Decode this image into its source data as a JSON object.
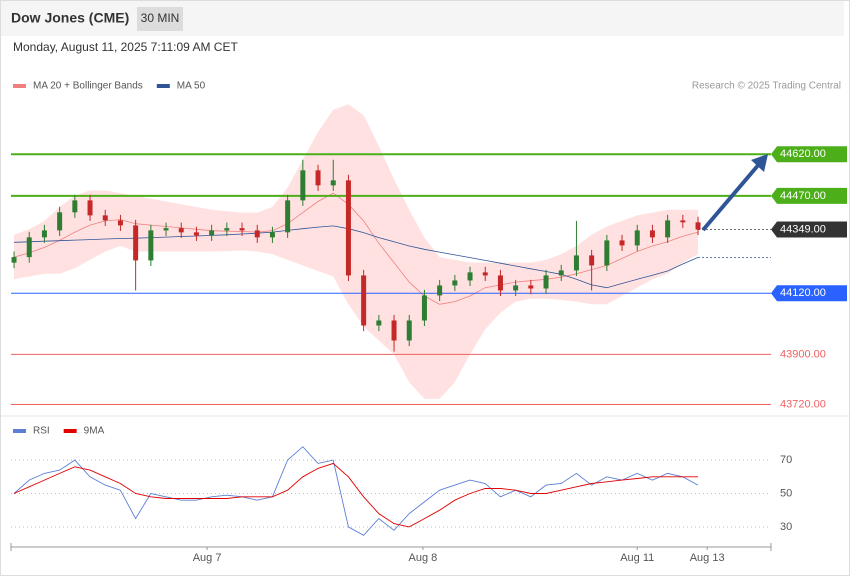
{
  "chart_data": {
    "type": "candlestick",
    "title": "Dow Jones (CME)",
    "interval": "30 MIN",
    "subtitle": "Monday, August 11, 2025 7:11:09 AM CET",
    "source": "Research © 2025 Trading Central",
    "legend": [
      {
        "name": "MA 20 + Bollinger Bands",
        "color": "#f08080"
      },
      {
        "name": "MA 50",
        "color": "#2f5597"
      }
    ],
    "xlim": [
      -0.2,
      49.8
    ],
    "xticks": [
      {
        "value": 12.7,
        "label": "Aug 7"
      },
      {
        "value": 26.9,
        "label": "Aug 8"
      },
      {
        "value": 41,
        "label": "Aug 11"
      },
      {
        "value": 45.6,
        "label": "Aug 13"
      }
    ],
    "ylim": [
      43700,
      44815
    ],
    "up_color": "#2e7d32",
    "down_color": "#c62828",
    "open": [
      44230,
      44250,
      44321,
      44346,
      44411,
      44454,
      44400,
      44382,
      44364,
      44238,
      44346,
      44354,
      44339,
      44328,
      44346,
      44354,
      44346,
      44321,
      44339,
      44454,
      44562,
      44508,
      44526,
      44184,
      44004,
      44022,
      43950,
      44022,
      44112,
      44148,
      44166,
      44195,
      44184,
      44130,
      44148,
      44137,
      44184,
      44202,
      44256,
      44220,
      44310,
      44292,
      44346,
      44321,
      44382,
      44375
    ],
    "high": [
      44270,
      44341,
      44366,
      44431,
      44474,
      44474,
      44420,
      44402,
      44384,
      44366,
      44374,
      44374,
      44359,
      44366,
      44374,
      44374,
      44366,
      44359,
      44474,
      44600,
      44582,
      44600,
      44546,
      44204,
      44042,
      44042,
      44042,
      44132,
      44168,
      44186,
      44215,
      44215,
      44204,
      44168,
      44168,
      44204,
      44222,
      44380,
      44276,
      44330,
      44330,
      44366,
      44366,
      44402,
      44402,
      44395
    ],
    "low": [
      44210,
      44230,
      44301,
      44326,
      44391,
      44380,
      44362,
      44344,
      44130,
      44218,
      44326,
      44319,
      44308,
      44308,
      44326,
      44326,
      44301,
      44301,
      44319,
      44434,
      44488,
      44488,
      44164,
      43984,
      43984,
      43910,
      43930,
      44002,
      44092,
      44128,
      44146,
      44164,
      44110,
      44110,
      44117,
      44117,
      44164,
      44182,
      44130,
      44200,
      44272,
      44272,
      44301,
      44301,
      44355,
      44329
    ],
    "close": [
      44250,
      44321,
      44346,
      44411,
      44454,
      44400,
      44382,
      44364,
      44238,
      44346,
      44354,
      44339,
      44328,
      44346,
      44354,
      44346,
      44321,
      44339,
      44454,
      44562,
      44508,
      44526,
      44184,
      44004,
      44022,
      43950,
      44022,
      44112,
      44148,
      44166,
      44195,
      44184,
      44130,
      44148,
      44137,
      44184,
      44202,
      44256,
      44220,
      44310,
      44292,
      44346,
      44321,
      44382,
      44375,
      44349
    ],
    "ma20": [
      44250,
      44265,
      44285,
      44310,
      44340,
      44365,
      44380,
      44385,
      44370,
      44365,
      44360,
      44355,
      44350,
      44345,
      44343,
      44342,
      44340,
      44345,
      44370,
      44410,
      44450,
      44480,
      44440,
      44380,
      44300,
      44230,
      44160,
      44110,
      44080,
      44090,
      44110,
      44140,
      44150,
      44160,
      44165,
      44170,
      44178,
      44190,
      44205,
      44220,
      44245,
      44270,
      44290,
      44305,
      44325,
      44340
    ],
    "ma50": [
      44303,
      44305,
      44307,
      44309,
      44311,
      44313,
      44315,
      44317,
      44318,
      44320,
      44322,
      44324,
      44326,
      44328,
      44330,
      44333,
      44336,
      44340,
      44346,
      44352,
      44358,
      44362,
      44352,
      44338,
      44320,
      44305,
      44290,
      44278,
      44268,
      44258,
      44248,
      44238,
      44228,
      44218,
      44208,
      44198,
      44188,
      44170,
      44150,
      44140,
      44155,
      44170,
      44185,
      44200,
      44225,
      44249
    ],
    "bb_upper": [
      44330,
      44350,
      44380,
      44430,
      44470,
      44490,
      44490,
      44480,
      44470,
      44460,
      44450,
      44440,
      44430,
      44420,
      44415,
      44410,
      44410,
      44430,
      44500,
      44600,
      44700,
      44780,
      44800,
      44760,
      44650,
      44530,
      44420,
      44320,
      44250,
      44240,
      44230,
      44230,
      44230,
      44230,
      44230,
      44240,
      44260,
      44290,
      44330,
      44360,
      44380,
      44400,
      44410,
      44420,
      44420,
      44420
    ],
    "bb_lower": [
      44170,
      44180,
      44190,
      44190,
      44210,
      44240,
      44270,
      44290,
      44270,
      44270,
      44270,
      44270,
      44270,
      44270,
      44271,
      44274,
      44270,
      44260,
      44240,
      44220,
      44200,
      44180,
      44080,
      44000,
      43950,
      43900,
      43800,
      43740,
      43740,
      43800,
      43900,
      43990,
      44050,
      44090,
      44100,
      44100,
      44096,
      44090,
      44080,
      44080,
      44110,
      44140,
      44170,
      44190,
      44230,
      44260
    ],
    "levels": [
      {
        "value": 44620,
        "label": "44620.00",
        "color": "#4caf1a",
        "style": "box"
      },
      {
        "value": 44470,
        "label": "44470.00",
        "color": "#4caf1a",
        "style": "box"
      },
      {
        "value": 44349,
        "label": "44349.00",
        "color": "#333333",
        "style": "current"
      },
      {
        "value": 44120,
        "label": "44120.00",
        "color": "#2962ff",
        "style": "box"
      },
      {
        "value": 43900,
        "label": "43900.00",
        "color": "#f06060",
        "style": "text"
      },
      {
        "value": 43720,
        "label": "43720.00",
        "color": "#f06060",
        "style": "text"
      }
    ],
    "rsi": {
      "legend": [
        {
          "name": "RSI",
          "color": "#5b7fd6"
        },
        {
          "name": "9MA",
          "color": "#e00000"
        }
      ],
      "ylim": [
        18,
        82
      ],
      "yticks": [
        70,
        50,
        30
      ],
      "values": [
        50,
        58,
        62,
        64,
        70,
        60,
        55,
        52,
        35,
        50,
        48,
        46,
        46,
        48,
        49,
        48,
        46,
        48,
        70,
        78,
        68,
        70,
        30,
        25,
        35,
        28,
        38,
        45,
        52,
        55,
        58,
        56,
        48,
        52,
        48,
        55,
        56,
        62,
        55,
        60,
        58,
        62,
        58,
        62,
        60,
        55
      ],
      "ma": [
        50,
        54,
        58,
        62,
        66,
        64,
        60,
        56,
        50,
        48,
        47,
        47,
        47,
        47,
        47,
        48,
        48,
        48,
        52,
        60,
        65,
        68,
        60,
        48,
        38,
        32,
        30,
        35,
        40,
        46,
        50,
        53,
        53,
        52,
        50,
        50,
        52,
        54,
        56,
        57,
        58,
        59,
        60,
        60,
        60,
        60
      ]
    }
  }
}
